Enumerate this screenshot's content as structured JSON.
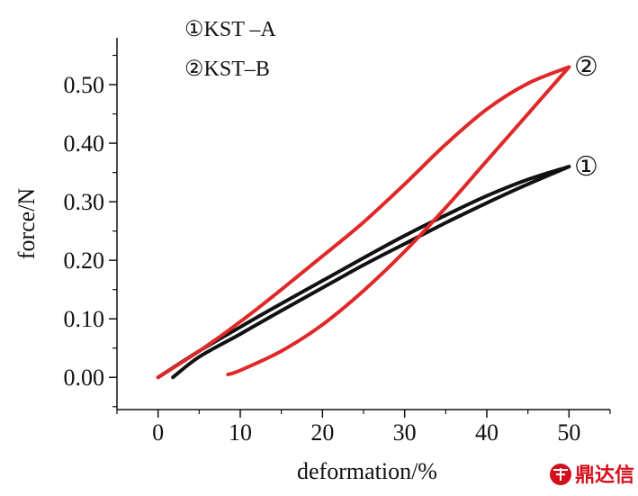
{
  "chart_data": {
    "type": "line",
    "xlabel": "deformation/%",
    "ylabel": "force/N",
    "xlim": [
      -5,
      55
    ],
    "ylim": [
      -0.055,
      0.58
    ],
    "x_ticks": [
      0,
      10,
      20,
      30,
      40,
      50
    ],
    "y_ticks": [
      0.0,
      0.1,
      0.2,
      0.3,
      0.4,
      0.5
    ],
    "x_tick_labels": [
      "0",
      "10",
      "20",
      "30",
      "40",
      "50"
    ],
    "y_tick_labels": [
      "0.00",
      "0.10",
      "0.20",
      "0.30",
      "0.40",
      "0.50"
    ],
    "legend": {
      "placement": "top-left",
      "entries": [
        "①KST –A",
        "②KST–B"
      ]
    },
    "grid": false,
    "series": [
      {
        "id": "1",
        "marker_label": "①",
        "color": "#111111",
        "loading": [
          [
            0,
            0
          ],
          [
            5,
            0.045
          ],
          [
            10,
            0.086
          ],
          [
            15,
            0.126
          ],
          [
            20,
            0.165
          ],
          [
            25,
            0.204
          ],
          [
            30,
            0.242
          ],
          [
            35,
            0.277
          ],
          [
            40,
            0.31
          ],
          [
            45,
            0.338
          ],
          [
            50,
            0.36
          ]
        ],
        "unloading": [
          [
            50,
            0.36
          ],
          [
            45,
            0.33
          ],
          [
            40,
            0.298
          ],
          [
            35,
            0.264
          ],
          [
            30,
            0.228
          ],
          [
            25,
            0.192
          ],
          [
            20,
            0.153
          ],
          [
            15,
            0.114
          ],
          [
            10,
            0.074
          ],
          [
            5,
            0.035
          ],
          [
            1.8,
            0.0
          ]
        ]
      },
      {
        "id": "2",
        "marker_label": "②",
        "color": "#e02828",
        "loading": [
          [
            0,
            0
          ],
          [
            5,
            0.045
          ],
          [
            10,
            0.095
          ],
          [
            15,
            0.15
          ],
          [
            20,
            0.207
          ],
          [
            25,
            0.265
          ],
          [
            30,
            0.33
          ],
          [
            35,
            0.398
          ],
          [
            40,
            0.458
          ],
          [
            45,
            0.502
          ],
          [
            50,
            0.53
          ]
        ],
        "unloading": [
          [
            50,
            0.53
          ],
          [
            45,
            0.45
          ],
          [
            40,
            0.37
          ],
          [
            35,
            0.29
          ],
          [
            30,
            0.215
          ],
          [
            25,
            0.148
          ],
          [
            20,
            0.09
          ],
          [
            15,
            0.045
          ],
          [
            10,
            0.012
          ],
          [
            8.5,
            0.005
          ]
        ]
      }
    ]
  },
  "watermark": {
    "text": "鼎达信",
    "color": "#d5101e"
  }
}
